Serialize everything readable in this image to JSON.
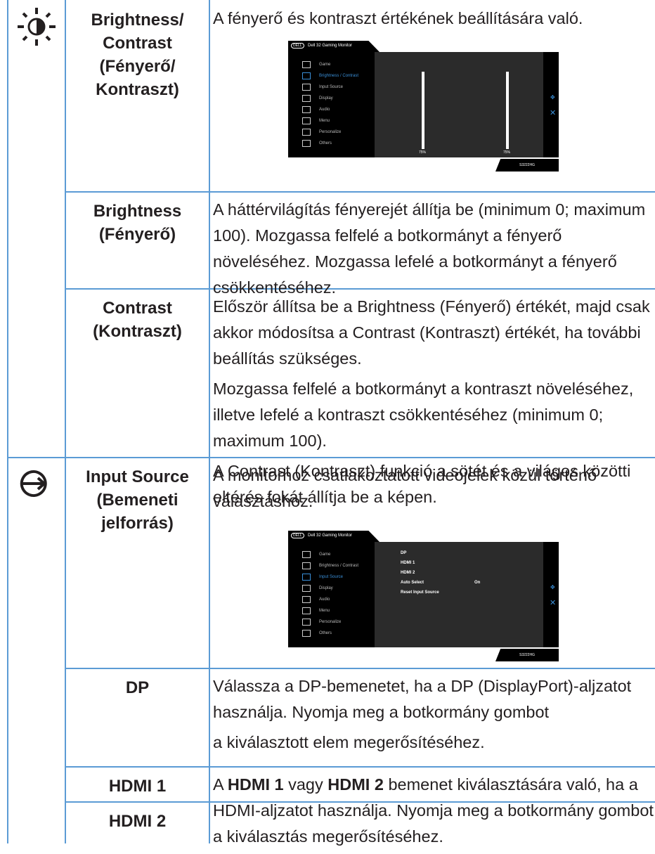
{
  "rows": [
    {
      "icon": "brightness",
      "name": [
        "Brightness/",
        "Contrast",
        "(Fényerő/",
        "Kontraszt)"
      ],
      "paragraphs": [
        "A fényerő és kontraszt értékének beállítására való."
      ],
      "osd": 0
    },
    {
      "name": [
        "Brightness",
        "(Fényerő)"
      ],
      "paragraphs": [
        "A háttérvilágítás fényerejét állítja be (minimum 0; maximum 100). Mozgassa felfelé a botkormányt a fényerő növeléséhez. Mozgassa lefelé a botkormányt a fényerő csökkentéséhez."
      ]
    },
    {
      "name": [
        "Contrast",
        "(Kontraszt)"
      ],
      "paragraphs": [
        "Először állítsa be a Brightness (Fényerő) értékét, majd csak akkor módosítsa a Contrast (Kontraszt) értékét, ha további beállítás szükséges.",
        "Mozgassa felfelé a botkormányt a kontraszt növeléséhez, illetve lefelé a kontraszt csökkentéséhez (minimum 0; maximum 100).",
        "A Contrast (Kontraszt) funkció a sötét és a világos közötti eltérés fokát állítja be a képen."
      ]
    },
    {
      "icon": "input",
      "name": [
        "Input Source",
        "(Bemeneti",
        "jelforrás)"
      ],
      "paragraphs": [
        "A monitorhoz csatlakoztatott videojelek közül történő választáshoz."
      ],
      "osd": 1
    },
    {
      "name": [
        "DP"
      ],
      "paragraphs": [
        "Válassza a DP-bemenetet, ha a DP (DisplayPort)-aljzatot használja. Nyomja meg a botkormány gombot",
        "a kiválasztott elem megerősítéséhez."
      ]
    },
    {
      "name": [
        "HDMI 1"
      ],
      "rich": [
        "A ",
        "HDMI 1",
        " vagy ",
        "HDMI 2",
        " bemenet kiválasztására való, ha a HDMI-aljzatot használja. Nyomja meg a botkormány gombot a kiválasztás megerősítéséhez."
      ]
    },
    {
      "name": [
        "HDMI 2"
      ]
    }
  ],
  "osd": {
    "logo": "DELL",
    "title": "Dell 32 Gaming Monitor",
    "model": "S3222HG",
    "menu": [
      "Game",
      "Brightness / Contrast",
      "Input Source",
      "Display",
      "Audio",
      "Menu",
      "Personalize",
      "Others"
    ],
    "screens": [
      {
        "active": 1,
        "levels": [
          "75%",
          "75%"
        ]
      },
      {
        "active": 2,
        "options": [
          "DP",
          "HDMI 1",
          "HDMI 2",
          "Auto Select",
          "Reset Input Source"
        ],
        "auto": "On"
      }
    ]
  }
}
